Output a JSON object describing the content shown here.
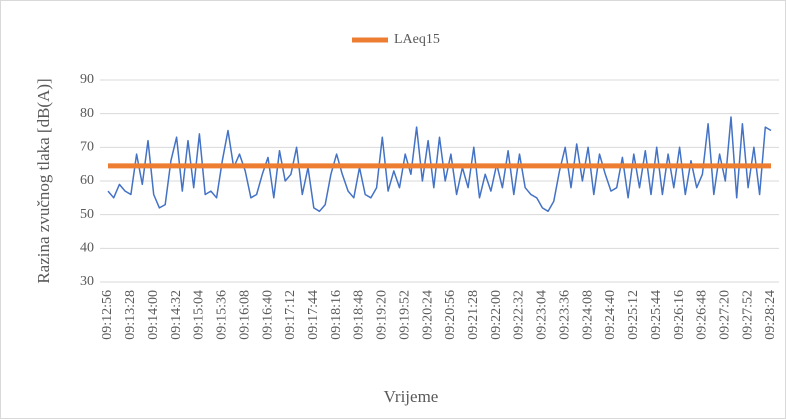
{
  "chart_data": {
    "type": "line",
    "x_label": "Vrijeme",
    "y_label": "Razina zvučnog tlaka [dB(A)]",
    "categories": [
      "09:12:56",
      null,
      null,
      null,
      "09:13:28",
      null,
      null,
      null,
      "09:14:00",
      null,
      null,
      null,
      "09:14:32",
      null,
      null,
      null,
      "09:15:04",
      null,
      null,
      null,
      "09:15:36",
      null,
      null,
      null,
      "09:16:08",
      null,
      null,
      null,
      "09:16:40",
      null,
      null,
      null,
      "09:17:12",
      null,
      null,
      null,
      "09:17:44",
      null,
      null,
      null,
      "09:18:16",
      null,
      null,
      null,
      "09:18:48",
      null,
      null,
      null,
      "09:19:20",
      null,
      null,
      null,
      "09:19:52",
      null,
      null,
      null,
      "09:20:24",
      null,
      null,
      null,
      "09:20:56",
      null,
      null,
      null,
      "09:21:28",
      null,
      null,
      null,
      "09:22:00",
      null,
      null,
      null,
      "09:22:32",
      null,
      null,
      null,
      "09:23:04",
      null,
      null,
      null,
      "09:23:36",
      null,
      null,
      null,
      "09:24:08",
      null,
      null,
      null,
      "09:24:40",
      null,
      null,
      null,
      "09:25:12",
      null,
      null,
      null,
      "09:25:44",
      null,
      null,
      null,
      "09:26:16",
      null,
      null,
      null,
      "09:26:48",
      null,
      null,
      null,
      "09:27:20",
      null,
      null,
      null,
      "09:27:52",
      null,
      null,
      null,
      "09:28:24"
    ],
    "series": [
      {
        "color": "#4472c4",
        "values": [
          57,
          55,
          59,
          57,
          56,
          68,
          59,
          72,
          56,
          52,
          53,
          66,
          73,
          57,
          72,
          58,
          74,
          56,
          57,
          55,
          66,
          75,
          64,
          68,
          63,
          55,
          56,
          62,
          67,
          55,
          69,
          60,
          62,
          70,
          56,
          64,
          52,
          51,
          53,
          62,
          68,
          62,
          57,
          55,
          64,
          56,
          55,
          58,
          73,
          57,
          63,
          58,
          68,
          62,
          76,
          60,
          72,
          58,
          73,
          60,
          68,
          56,
          64,
          58,
          70,
          55,
          62,
          57,
          65,
          58,
          69,
          56,
          68,
          58,
          56,
          55,
          52,
          51,
          54,
          63,
          70,
          58,
          71,
          60,
          70,
          56,
          68,
          62,
          57,
          58,
          67,
          55,
          68,
          58,
          69,
          56,
          70,
          56,
          68,
          58,
          70,
          56,
          66,
          58,
          62,
          77,
          56,
          68,
          60,
          79,
          55,
          77,
          58,
          70,
          56,
          76,
          75
        ]
      },
      {
        "name": "LAeq15",
        "color": "#ed7d31",
        "values": [
          64.5,
          64.5,
          64.5,
          64.5,
          64.5,
          64.5,
          64.5,
          64.5,
          64.5,
          64.5,
          64.5,
          64.5,
          64.5,
          64.5,
          64.5,
          64.5,
          64.5,
          64.5,
          64.5,
          64.5,
          64.5,
          64.5,
          64.5,
          64.5,
          64.5,
          64.5,
          64.5,
          64.5,
          64.5,
          64.5,
          64.5,
          64.5,
          64.5,
          64.5,
          64.5,
          64.5,
          64.5,
          64.5,
          64.5,
          64.5,
          64.5,
          64.5,
          64.5,
          64.5,
          64.5,
          64.5,
          64.5,
          64.5,
          64.5,
          64.5,
          64.5,
          64.5,
          64.5,
          64.5,
          64.5,
          64.5,
          64.5,
          64.5,
          64.5,
          64.5,
          64.5,
          64.5,
          64.5,
          64.5,
          64.5,
          64.5,
          64.5,
          64.5,
          64.5,
          64.5,
          64.5,
          64.5,
          64.5,
          64.5,
          64.5,
          64.5,
          64.5,
          64.5,
          64.5,
          64.5,
          64.5,
          64.5,
          64.5,
          64.5,
          64.5,
          64.5,
          64.5,
          64.5,
          64.5,
          64.5,
          64.5,
          64.5,
          64.5,
          64.5,
          64.5,
          64.5,
          64.5,
          64.5,
          64.5,
          64.5,
          64.5,
          64.5,
          64.5,
          64.5,
          64.5,
          64.5,
          64.5,
          64.5,
          64.5,
          64.5,
          64.5,
          64.5,
          64.5,
          64.5,
          64.5,
          64.5,
          64.5
        ]
      }
    ],
    "ylim": [
      30,
      90
    ],
    "yticks": [
      30,
      40,
      50,
      60,
      70,
      80,
      90
    ],
    "grid": true,
    "legend": "top"
  }
}
